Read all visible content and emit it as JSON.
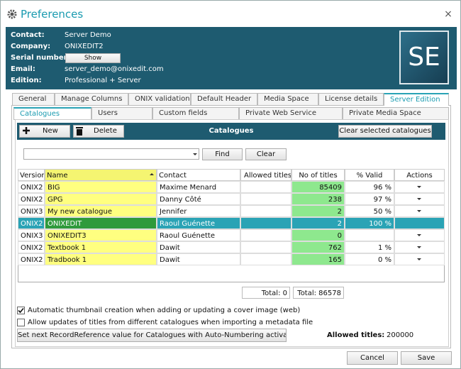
{
  "window": {
    "title": "Preferences",
    "close": "×"
  },
  "header": {
    "fields": [
      {
        "label": "Contact:",
        "value": "Server Demo"
      },
      {
        "label": "Company:",
        "value": "ONIXEDIT2"
      },
      {
        "label": "Serial number:",
        "button": "Show"
      },
      {
        "label": "Email:",
        "value": "server_demo@onixedit.com"
      },
      {
        "label": "Edition:",
        "value": "Professional + Server"
      }
    ],
    "logo": "SE"
  },
  "tabs": {
    "items": [
      "General",
      "Manage Columns",
      "ONIX validation",
      "Default Header",
      "Media Space",
      "License details",
      "Server Edition"
    ],
    "active": 6
  },
  "subtabs": {
    "items": [
      "Catalogues",
      "Users",
      "Custom fields",
      "Private Web Service",
      "Private Media Space"
    ],
    "active": 0
  },
  "toolbar": {
    "new": "New",
    "delete": "Delete",
    "title": "Catalogues",
    "clear_selected": "Clear selected catalogues"
  },
  "search": {
    "find": "Find",
    "clear": "Clear"
  },
  "table": {
    "columns": [
      "Version",
      "Name",
      "Contact",
      "Allowed titles",
      "No of titles",
      "% Valid",
      "Actions"
    ],
    "rows": [
      {
        "version": "ONIX2",
        "name": "BIG",
        "contact": "Maxime Menard",
        "titles": 85409,
        "valid": "96 %"
      },
      {
        "version": "ONIX2",
        "name": "GPG",
        "contact": "Danny Côté",
        "titles": 238,
        "valid": "97 %"
      },
      {
        "version": "ONIX3",
        "name": "My new catalogue",
        "contact": "Jennifer",
        "titles": 2,
        "valid": "50 %"
      },
      {
        "version": "ONIX2",
        "name": "ONIXEDIT",
        "contact": "Raoul Guénette",
        "titles": 2,
        "valid": "100 %"
      },
      {
        "version": "ONIX3",
        "name": "ONIXEDIT3",
        "contact": "Raoul Guénette",
        "titles": 0
      },
      {
        "version": "ONIX2",
        "name": "Textbook 1",
        "contact": "Dawit",
        "titles": 762,
        "valid": "1 %"
      },
      {
        "version": "ONIX2",
        "name": "Tradbook 1",
        "contact": "Dawit",
        "titles": 165,
        "valid": "0 %"
      }
    ],
    "selected_row": 3
  },
  "totals": {
    "allowed": "Total: 0",
    "titles": "Total: 86578"
  },
  "options": [
    {
      "label": "Automatic thumbnail creation when adding or updating a cover image (web)",
      "checked": true
    },
    {
      "label": "Allow updates of titles from different catalogues when importing a metadata file",
      "checked": false
    }
  ],
  "footer": {
    "set_next": "Set next RecordReference value for Catalogues with Auto-Numbering activated",
    "allowed_label": "Allowed titles:",
    "allowed_value": "200000",
    "cancel": "Cancel",
    "save": "Save"
  }
}
